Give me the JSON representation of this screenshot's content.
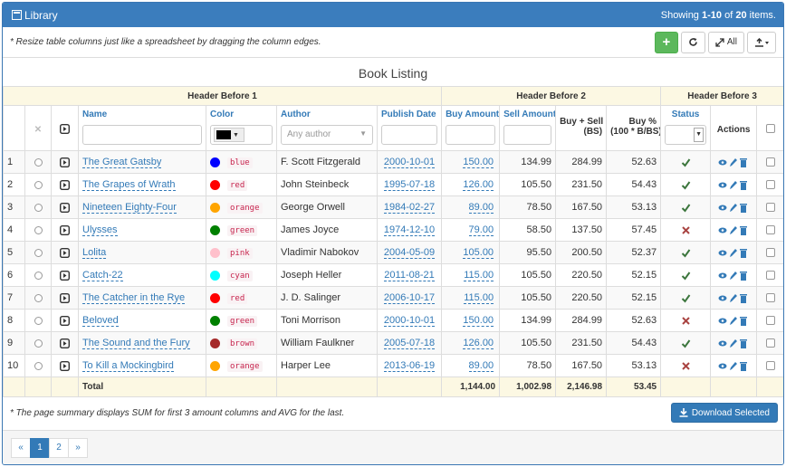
{
  "header": {
    "title": "Library",
    "showing_prefix": "Showing",
    "showing_range": "1-10",
    "showing_of": "of",
    "showing_total": "20",
    "showing_suffix": "items."
  },
  "toolbar": {
    "note": "* Resize table columns just like a spreadsheet by dragging the column edges.",
    "all_button": "All"
  },
  "table": {
    "caption": "Book Listing",
    "groups": [
      "Header Before 1",
      "Header Before 2",
      "Header Before 3"
    ],
    "columns": {
      "name": "Name",
      "color": "Color",
      "author": "Author",
      "date": "Publish Date",
      "buy": "Buy Amount",
      "sell": "Sell Amount",
      "sum_line1": "Buy + Sell",
      "sum_line2": "(BS)",
      "pct_line1": "Buy %",
      "pct_line2": "(100 * B/BS)",
      "status": "Status",
      "actions": "Actions"
    },
    "author_placeholder": "Any author",
    "rows": [
      {
        "num": "1",
        "name": "The Great Gatsby",
        "color": "blue",
        "author": "F. Scott Fitzgerald",
        "date": "2000-10-01",
        "buy": "150.00",
        "sell": "134.99",
        "sum": "284.99",
        "pct": "52.63",
        "active": true
      },
      {
        "num": "2",
        "name": "The Grapes of Wrath",
        "color": "red",
        "author": "John Steinbeck",
        "date": "1995-07-18",
        "buy": "126.00",
        "sell": "105.50",
        "sum": "231.50",
        "pct": "54.43",
        "active": true
      },
      {
        "num": "3",
        "name": "Nineteen Eighty-Four",
        "color": "orange",
        "author": "George Orwell",
        "date": "1984-02-27",
        "buy": "89.00",
        "sell": "78.50",
        "sum": "167.50",
        "pct": "53.13",
        "active": true
      },
      {
        "num": "4",
        "name": "Ulysses",
        "color": "green",
        "author": "James Joyce",
        "date": "1974-12-10",
        "buy": "79.00",
        "sell": "58.50",
        "sum": "137.50",
        "pct": "57.45",
        "active": false
      },
      {
        "num": "5",
        "name": "Lolita",
        "color": "pink",
        "author": "Vladimir Nabokov",
        "date": "2004-05-09",
        "buy": "105.00",
        "sell": "95.50",
        "sum": "200.50",
        "pct": "52.37",
        "active": true
      },
      {
        "num": "6",
        "name": "Catch-22",
        "color": "cyan",
        "author": "Joseph Heller",
        "date": "2011-08-21",
        "buy": "115.00",
        "sell": "105.50",
        "sum": "220.50",
        "pct": "52.15",
        "active": true
      },
      {
        "num": "7",
        "name": "The Catcher in the Rye",
        "color": "red",
        "author": "J. D. Salinger",
        "date": "2006-10-17",
        "buy": "115.00",
        "sell": "105.50",
        "sum": "220.50",
        "pct": "52.15",
        "active": true
      },
      {
        "num": "8",
        "name": "Beloved",
        "color": "green",
        "author": "Toni Morrison",
        "date": "2000-10-01",
        "buy": "150.00",
        "sell": "134.99",
        "sum": "284.99",
        "pct": "52.63",
        "active": false
      },
      {
        "num": "9",
        "name": "The Sound and the Fury",
        "color": "brown",
        "author": "William Faulkner",
        "date": "2005-07-18",
        "buy": "126.00",
        "sell": "105.50",
        "sum": "231.50",
        "pct": "54.43",
        "active": true
      },
      {
        "num": "10",
        "name": "To Kill a Mockingbird",
        "color": "orange",
        "author": "Harper Lee",
        "date": "2013-06-19",
        "buy": "89.00",
        "sell": "78.50",
        "sum": "167.50",
        "pct": "53.13",
        "active": false
      }
    ],
    "footer": {
      "label": "Total",
      "buy": "1,144.00",
      "sell": "1,002.98",
      "sum": "2,146.98",
      "pct": "53.45"
    }
  },
  "bottom": {
    "note": "* The page summary displays SUM for first 3 amount columns and AVG for the last.",
    "download": "Download Selected"
  },
  "pagination": [
    "«",
    "1",
    "2",
    "»"
  ]
}
